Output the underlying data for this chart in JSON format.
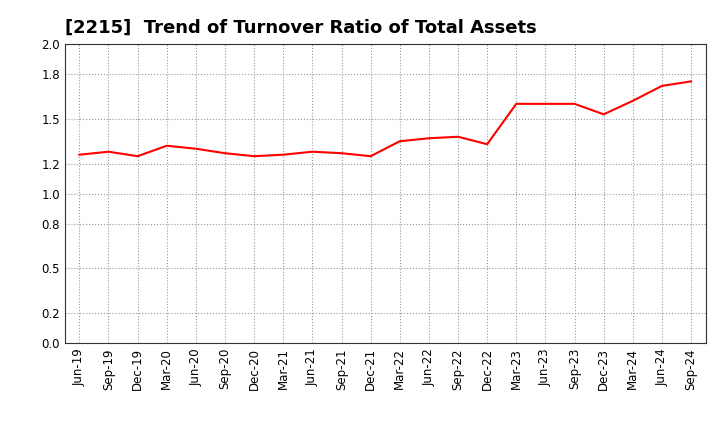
{
  "title": "[2215]  Trend of Turnover Ratio of Total Assets",
  "x_labels": [
    "Jun-19",
    "Sep-19",
    "Dec-19",
    "Mar-20",
    "Jun-20",
    "Sep-20",
    "Dec-20",
    "Mar-21",
    "Jun-21",
    "Sep-21",
    "Dec-21",
    "Mar-22",
    "Jun-22",
    "Sep-22",
    "Dec-22",
    "Mar-23",
    "Jun-23",
    "Sep-23",
    "Dec-23",
    "Mar-24",
    "Jun-24",
    "Sep-24"
  ],
  "values": [
    1.26,
    1.28,
    1.25,
    1.32,
    1.3,
    1.27,
    1.25,
    1.26,
    1.28,
    1.27,
    1.25,
    1.35,
    1.37,
    1.38,
    1.33,
    1.6,
    1.6,
    1.6,
    1.53,
    1.62,
    1.72,
    1.75
  ],
  "line_color": "#FF0000",
  "line_width": 1.5,
  "ylim": [
    0.0,
    2.0
  ],
  "yticks": [
    0.0,
    0.2,
    0.5,
    0.8,
    1.0,
    1.2,
    1.5,
    1.8,
    2.0
  ],
  "background_color": "#FFFFFF",
  "grid_color": "#999999",
  "title_fontsize": 13,
  "tick_fontsize": 8.5
}
